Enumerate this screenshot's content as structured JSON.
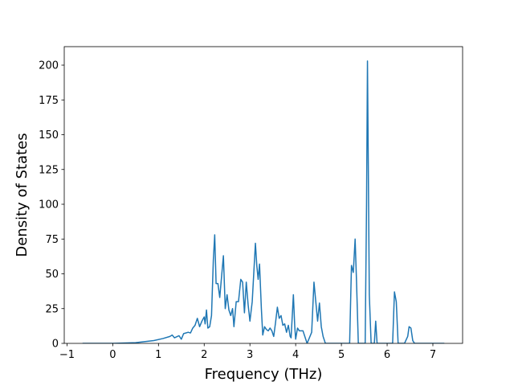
{
  "chart_data": {
    "type": "line",
    "xlabel": "Frequency (THz)",
    "ylabel": "Density of States",
    "xlim": [
      -1.06,
      7.65
    ],
    "ylim": [
      0,
      213.3
    ],
    "xticks": [
      {
        "value": -1,
        "label": "−1"
      },
      0,
      1,
      2,
      3,
      4,
      5,
      6,
      7
    ],
    "yticks": [
      0,
      25,
      50,
      75,
      100,
      125,
      150,
      175,
      200
    ],
    "color": "#1f77b4",
    "x": [
      -0.66,
      0,
      0.5,
      0.9,
      1.1,
      1.25,
      1.3,
      1.35,
      1.45,
      1.5,
      1.55,
      1.65,
      1.7,
      1.75,
      1.8,
      1.85,
      1.9,
      1.95,
      2.0,
      2.02,
      2.05,
      2.08,
      2.12,
      2.16,
      2.2,
      2.23,
      2.26,
      2.3,
      2.34,
      2.38,
      2.42,
      2.46,
      2.5,
      2.54,
      2.58,
      2.62,
      2.65,
      2.7,
      2.75,
      2.8,
      2.84,
      2.88,
      2.92,
      2.96,
      3.0,
      3.05,
      3.12,
      3.15,
      3.18,
      3.21,
      3.25,
      3.28,
      3.32,
      3.36,
      3.4,
      3.44,
      3.48,
      3.52,
      3.56,
      3.6,
      3.64,
      3.68,
      3.72,
      3.76,
      3.8,
      3.84,
      3.88,
      3.9,
      3.95,
      3.98,
      4.0,
      4.04,
      4.08,
      4.12,
      4.16,
      4.2,
      4.25,
      4.35,
      4.4,
      4.44,
      4.48,
      4.52,
      4.56,
      4.6,
      4.65,
      5.18,
      5.22,
      5.26,
      5.3,
      5.33,
      5.37,
      5.52,
      5.55,
      5.57,
      5.59,
      5.61,
      5.65,
      5.72,
      5.75,
      5.78,
      6.12,
      6.16,
      6.2,
      6.24,
      6.38,
      6.45,
      6.48,
      6.52,
      6.56,
      6.6,
      7.25
    ],
    "values": [
      0,
      0,
      0.5,
      2,
      3.5,
      5,
      6,
      4,
      5.5,
      3,
      7,
      8,
      7.5,
      11,
      13,
      18,
      12,
      16,
      19,
      14,
      24,
      11,
      12,
      20,
      60,
      78,
      43,
      43,
      33,
      48,
      63,
      25,
      35,
      24,
      20,
      25,
      12,
      30,
      30,
      46,
      44,
      22,
      44,
      28,
      16,
      30,
      72,
      56,
      46,
      57,
      25,
      6,
      12,
      10,
      9,
      11,
      9,
      5,
      15,
      26,
      18,
      20,
      13,
      14,
      8,
      13,
      5,
      4,
      35,
      12,
      3,
      11,
      9,
      9,
      9,
      5,
      0,
      8,
      44,
      30,
      16,
      29,
      12,
      5,
      0,
      0,
      56,
      51,
      75,
      45,
      0,
      0,
      100,
      203,
      120,
      35,
      0,
      0,
      16,
      0,
      0,
      37,
      30,
      0,
      0,
      5,
      12,
      11,
      2,
      0,
      0
    ]
  }
}
